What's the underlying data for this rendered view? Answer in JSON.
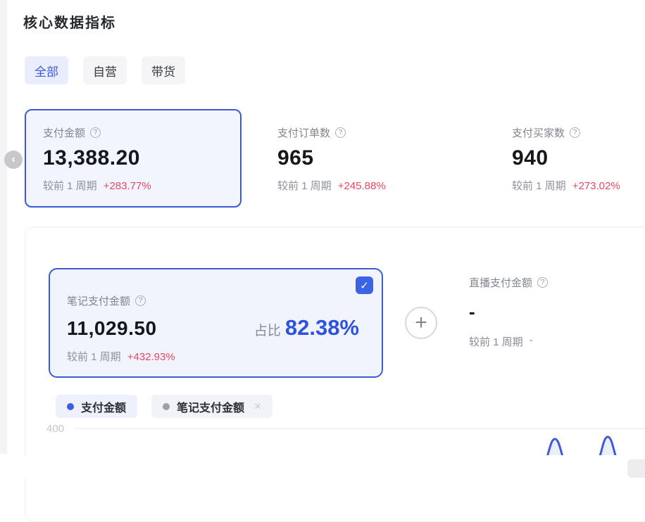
{
  "header": {
    "title": "核心数据指标"
  },
  "filter_tabs": [
    {
      "label": "全部",
      "active": true
    },
    {
      "label": "自营",
      "active": false
    },
    {
      "label": "带货",
      "active": false
    }
  ],
  "compare_prefix": "较前 1 周期",
  "metric_cards": [
    {
      "label": "支付金额",
      "value": "13,388.20",
      "delta": "+283.77%",
      "selected": true
    },
    {
      "label": "支付订单数",
      "value": "965",
      "delta": "+245.88%",
      "selected": false
    },
    {
      "label": "支付买家数",
      "value": "940",
      "delta": "+273.02%",
      "selected": false
    }
  ],
  "breakdown": {
    "note_card": {
      "label": "笔记支付金额",
      "value": "11,029.50",
      "ratio_label": "占比",
      "ratio_value": "82.38%",
      "delta": "+432.93%",
      "checked": true
    },
    "live_card": {
      "label": "直播支付金额",
      "value": "-",
      "delta": "-"
    }
  },
  "legend_chips": [
    {
      "label": "支付金额",
      "dot_color": "#3b5ce0",
      "removable": false
    },
    {
      "label": "笔记支付金额",
      "dot_color": "#9aa0a8",
      "removable": true
    }
  ],
  "chart_data": {
    "type": "area",
    "series": [
      {
        "name": "支付金额",
        "color": "#3d5ad8",
        "visible_peaks": [
          {
            "x_fraction": 0.718,
            "value": 365
          },
          {
            "x_fraction": 0.797,
            "value": 372
          }
        ]
      }
    ],
    "y_ticks_visible": [
      400
    ],
    "grid": true,
    "legend_position": "top-left"
  },
  "icons": {
    "help": "?",
    "check": "✓",
    "plus": "+",
    "close": "×",
    "chevron_left": "‹"
  },
  "colors": {
    "accent_blue": "#3d5ad8",
    "ratio_blue": "#2d53e0",
    "positive_red": "#e8485f",
    "selected_card_bg": "#f2f5fe",
    "muted_text": "#878c96"
  }
}
